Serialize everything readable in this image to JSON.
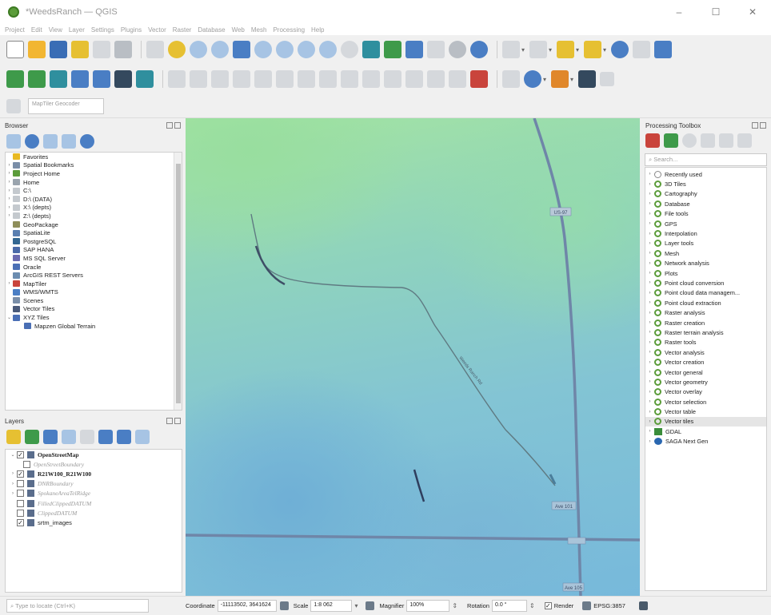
{
  "window": {
    "title": "*WeedsRanch — QGIS",
    "minimize": "–",
    "maximize": "☐",
    "close": "✕"
  },
  "menu": [
    "Project",
    "Edit",
    "View",
    "Layer",
    "Settings",
    "Plugins",
    "Vector",
    "Raster",
    "Database",
    "Web",
    "Mesh",
    "Processing",
    "Help"
  ],
  "toolbar": {
    "mapfile_geocoder_placeholder": "MapTiler Geocoder"
  },
  "browser": {
    "title": "Browser",
    "items": [
      {
        "label": "Favorites",
        "icon": "star-icon",
        "color": "#e8b923",
        "arrow": ""
      },
      {
        "label": "Spatial Bookmarks",
        "icon": "bookmark-icon",
        "color": "#7a8ea8",
        "arrow": "›"
      },
      {
        "label": "Project Home",
        "icon": "folder-icon",
        "color": "#5b9c3a",
        "arrow": "›"
      },
      {
        "label": "Home",
        "icon": "home-icon",
        "color": "#9aa4ae",
        "arrow": "›"
      },
      {
        "label": "C:\\",
        "icon": "drive-icon",
        "color": "#c4c9ce",
        "arrow": "›"
      },
      {
        "label": "D:\\ (DATA)",
        "icon": "drive-icon",
        "color": "#c4c9ce",
        "arrow": "›"
      },
      {
        "label": "X:\\ (depts)",
        "icon": "drive-icon",
        "color": "#c4c9ce",
        "arrow": "›"
      },
      {
        "label": "Z:\\ (depts)",
        "icon": "drive-icon",
        "color": "#c4c9ce",
        "arrow": "›"
      },
      {
        "label": "GeoPackage",
        "icon": "geopackage-icon",
        "color": "#8e8e5a",
        "arrow": ""
      },
      {
        "label": "SpatiaLite",
        "icon": "feather-icon",
        "color": "#5a7fb0",
        "arrow": ""
      },
      {
        "label": "PostgreSQL",
        "icon": "elephant-icon",
        "color": "#336791",
        "arrow": ""
      },
      {
        "label": "SAP HANA",
        "icon": "database-icon",
        "color": "#4b6aa8",
        "arrow": ""
      },
      {
        "label": "MS SQL Server",
        "icon": "mssql-icon",
        "color": "#6b6bb0",
        "arrow": ""
      },
      {
        "label": "Oracle",
        "icon": "database-icon",
        "color": "#4a6fb5",
        "arrow": ""
      },
      {
        "label": "ArcGIS REST Servers",
        "icon": "server-icon",
        "color": "#6b8cb0",
        "arrow": ""
      },
      {
        "label": "MapTiler",
        "icon": "pin-icon",
        "color": "#c9443c",
        "arrow": "›"
      },
      {
        "label": "WMS/WMTS",
        "icon": "globe-icon",
        "color": "#4a7ec4",
        "arrow": ""
      },
      {
        "label": "Scenes",
        "icon": "scene-icon",
        "color": "#7a8ea8",
        "arrow": ""
      },
      {
        "label": "Vector Tiles",
        "icon": "grid-icon",
        "color": "#4a5a7a",
        "arrow": ""
      },
      {
        "label": "XYZ Tiles",
        "icon": "grid-icon",
        "color": "#4a6fb5",
        "arrow": "⌄"
      },
      {
        "label": "Mapzen Global Terrain",
        "icon": "grid-icon",
        "color": "#4a6fb5",
        "arrow": ""
      }
    ]
  },
  "layers": {
    "title": "Layers",
    "items": [
      {
        "label": "OpenStreetMap",
        "style": "bold",
        "checked": "✓",
        "arrow": "⌄",
        "indent": 0
      },
      {
        "label": "OpenStreetBoundary",
        "style": "ital",
        "checked": "",
        "arrow": "",
        "indent": 1
      },
      {
        "label": "R21W100_R21W100",
        "style": "bold",
        "checked": "✓",
        "arrow": "›",
        "indent": 0
      },
      {
        "label": "DNRBoundary",
        "style": "ital",
        "checked": "",
        "arrow": "›",
        "indent": 0
      },
      {
        "label": "SpokaneAreaTelRidge",
        "style": "ital",
        "checked": "",
        "arrow": "›",
        "indent": 0
      },
      {
        "label": "FilledClippedDATUM",
        "style": "ital",
        "checked": "",
        "arrow": "",
        "indent": 0
      },
      {
        "label": "ClippedDATUM",
        "style": "ital",
        "checked": "",
        "arrow": "",
        "indent": 0
      },
      {
        "label": "srtm_images",
        "style": "normal",
        "checked": "✓",
        "arrow": "",
        "indent": 0
      }
    ]
  },
  "map": {
    "road_labels": [
      "US-97",
      "Weeds Ranch Rd",
      "Ave 101",
      "Ave 105"
    ]
  },
  "toolbox": {
    "title": "Processing Toolbox",
    "search_placeholder": "Search...",
    "items": [
      {
        "label": "Recently used",
        "icon": "clock",
        "hl": false
      },
      {
        "label": "3D Tiles",
        "icon": "q",
        "hl": false
      },
      {
        "label": "Cartography",
        "icon": "q",
        "hl": false
      },
      {
        "label": "Database",
        "icon": "q",
        "hl": false
      },
      {
        "label": "File tools",
        "icon": "q",
        "hl": false
      },
      {
        "label": "GPS",
        "icon": "q",
        "hl": false
      },
      {
        "label": "Interpolation",
        "icon": "q",
        "hl": false
      },
      {
        "label": "Layer tools",
        "icon": "q",
        "hl": false
      },
      {
        "label": "Mesh",
        "icon": "q",
        "hl": false
      },
      {
        "label": "Network analysis",
        "icon": "q",
        "hl": false
      },
      {
        "label": "Plots",
        "icon": "q",
        "hl": false
      },
      {
        "label": "Point cloud conversion",
        "icon": "q",
        "hl": false
      },
      {
        "label": "Point cloud data managem...",
        "icon": "q",
        "hl": false
      },
      {
        "label": "Point cloud extraction",
        "icon": "q",
        "hl": false
      },
      {
        "label": "Raster analysis",
        "icon": "q",
        "hl": false
      },
      {
        "label": "Raster creation",
        "icon": "q",
        "hl": false
      },
      {
        "label": "Raster terrain analysis",
        "icon": "q",
        "hl": false
      },
      {
        "label": "Raster tools",
        "icon": "q",
        "hl": false
      },
      {
        "label": "Vector analysis",
        "icon": "q",
        "hl": false
      },
      {
        "label": "Vector creation",
        "icon": "q",
        "hl": false
      },
      {
        "label": "Vector general",
        "icon": "q",
        "hl": false
      },
      {
        "label": "Vector geometry",
        "icon": "q",
        "hl": false
      },
      {
        "label": "Vector overlay",
        "icon": "q",
        "hl": false
      },
      {
        "label": "Vector selection",
        "icon": "q",
        "hl": false
      },
      {
        "label": "Vector table",
        "icon": "q",
        "hl": false
      },
      {
        "label": "Vector tiles",
        "icon": "q",
        "hl": true
      },
      {
        "label": "GDAL",
        "icon": "gdal",
        "hl": false
      },
      {
        "label": "SAGA Next Gen",
        "icon": "saga",
        "hl": false
      }
    ]
  },
  "statusbar": {
    "locator_placeholder": "Type to locate (Ctrl+K)",
    "coordinate_label": "Coordinate",
    "coordinate_value": "-11113502, 3641624",
    "scale_label": "Scale",
    "scale_value": "1:8 062",
    "magnifier_label": "Magnifier",
    "magnifier_value": "100%",
    "rotation_label": "Rotation",
    "rotation_value": "0.0 °",
    "render_label": "Render",
    "crs_label": "EPSG:3857"
  }
}
